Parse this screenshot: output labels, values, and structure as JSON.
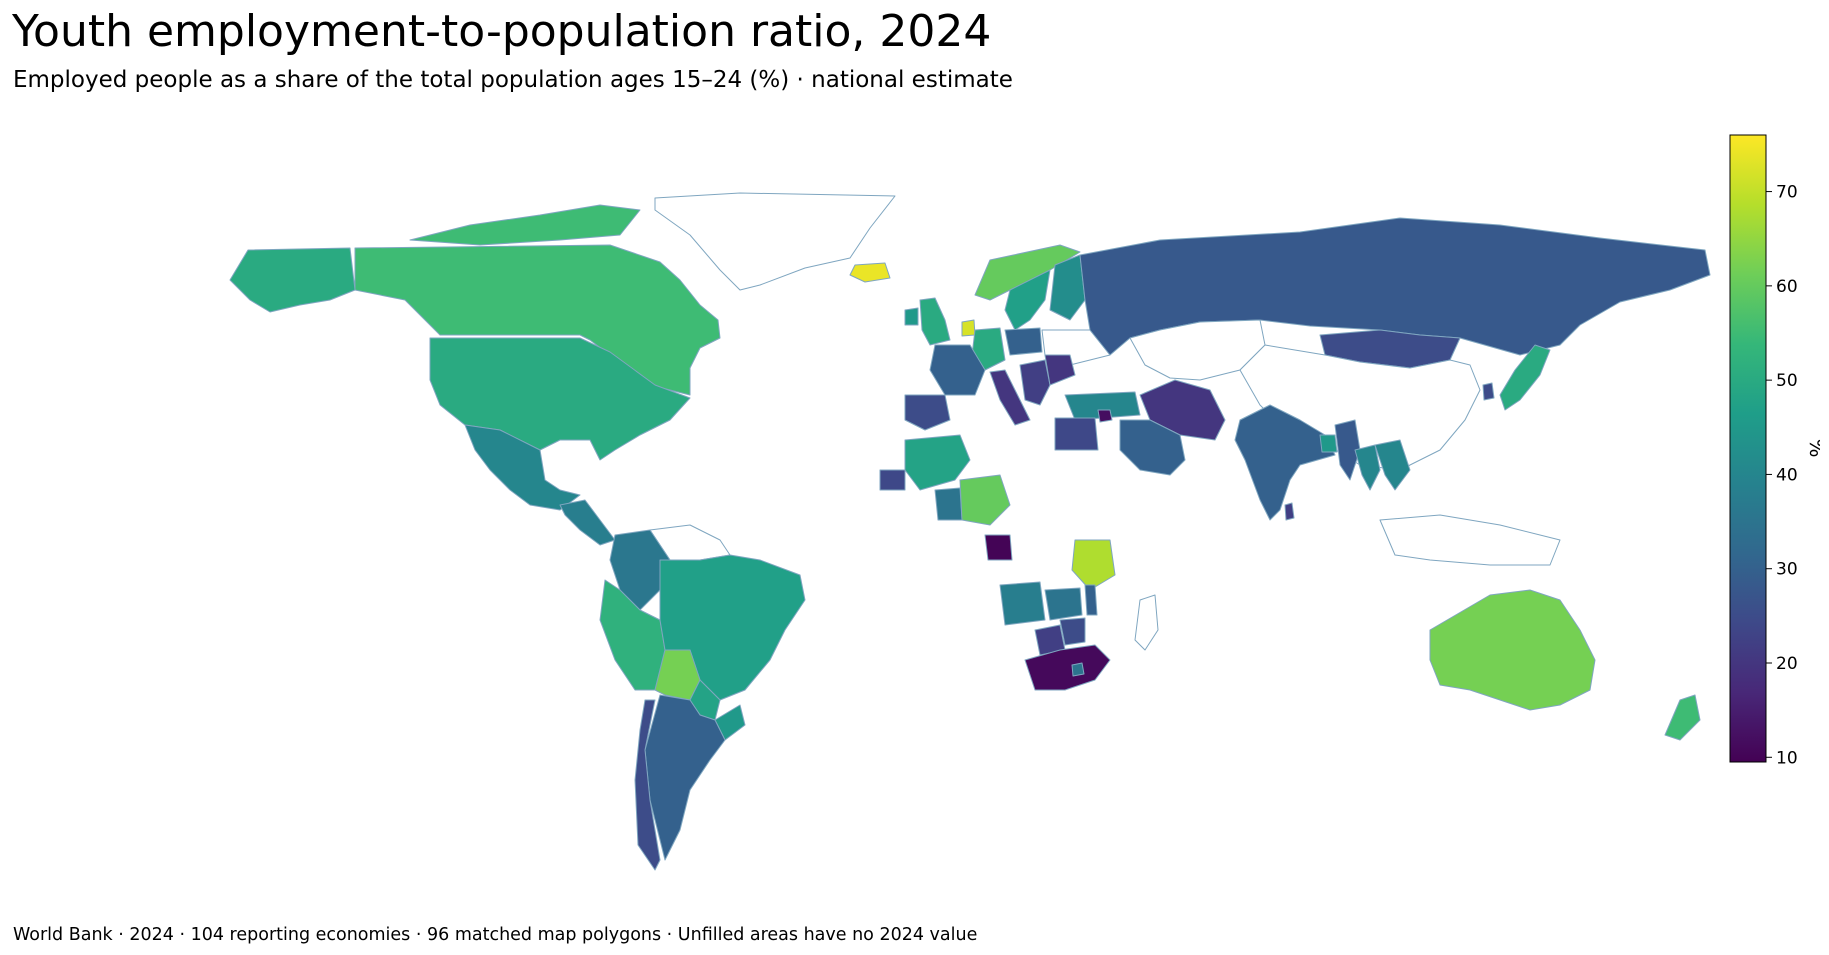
{
  "title": "Youth employment-to-population ratio, 2024",
  "subtitle": "Employed people as a share of the total population ages 15–24 (%) · national estimate",
  "footer": "World Bank · 2024 · 104 reporting economies · 96 matched map polygons · Unfilled areas have no 2024 value",
  "colorbar": {
    "label": "%",
    "min": 9.5,
    "max": 76,
    "ticks": [
      "10",
      "20",
      "30",
      "40",
      "50",
      "60",
      "70"
    ],
    "tick_values": [
      10,
      20,
      30,
      40,
      50,
      60,
      70
    ],
    "colormap": "viridis",
    "stops": [
      "#440154",
      "#482878",
      "#3e4989",
      "#31688e",
      "#26828e",
      "#1f9e89",
      "#35b779",
      "#6ece58",
      "#b5de2b",
      "#fde725"
    ]
  },
  "border_color": "#7fa6c0",
  "no_data_fill": "#ffffff",
  "map_data": {
    "type": "choropleth",
    "regions": [
      {
        "name": "Canada",
        "value": 55
      },
      {
        "name": "Greenland",
        "value": null
      },
      {
        "name": "United States",
        "value": 50
      },
      {
        "name": "Mexico",
        "value": 40
      },
      {
        "name": "Central America",
        "value": 38
      },
      {
        "name": "Colombia",
        "value": 36
      },
      {
        "name": "Venezuela",
        "value": null
      },
      {
        "name": "Peru",
        "value": 52
      },
      {
        "name": "Brazil",
        "value": 47
      },
      {
        "name": "Bolivia",
        "value": 62
      },
      {
        "name": "Paraguay",
        "value": 48
      },
      {
        "name": "Argentina",
        "value": 30
      },
      {
        "name": "Chile",
        "value": 25
      },
      {
        "name": "Uruguay",
        "value": 45
      },
      {
        "name": "Iceland",
        "value": 74
      },
      {
        "name": "United Kingdom",
        "value": 50
      },
      {
        "name": "Ireland",
        "value": 45
      },
      {
        "name": "France",
        "value": 30
      },
      {
        "name": "Spain",
        "value": 25
      },
      {
        "name": "Netherlands",
        "value": 72
      },
      {
        "name": "Germany",
        "value": 50
      },
      {
        "name": "Italy",
        "value": 20
      },
      {
        "name": "Poland",
        "value": 30
      },
      {
        "name": "Norway",
        "value": 60
      },
      {
        "name": "Sweden",
        "value": 47
      },
      {
        "name": "Finland",
        "value": 42
      },
      {
        "name": "Romania",
        "value": 20
      },
      {
        "name": "Balkans",
        "value": 22
      },
      {
        "name": "Ukraine",
        "value": null
      },
      {
        "name": "Turkey",
        "value": 40
      },
      {
        "name": "Russia",
        "value": 28
      },
      {
        "name": "Kazakhstan",
        "value": null
      },
      {
        "name": "Mongolia",
        "value": 25
      },
      {
        "name": "China",
        "value": null
      },
      {
        "name": "Japan",
        "value": 50
      },
      {
        "name": "South Korea",
        "value": 25
      },
      {
        "name": "Iran",
        "value": 20
      },
      {
        "name": "Saudi Arabia",
        "value": 30
      },
      {
        "name": "Egypt",
        "value": 24
      },
      {
        "name": "Jordan",
        "value": 12
      },
      {
        "name": "India",
        "value": 30
      },
      {
        "name": "Bangladesh",
        "value": 45
      },
      {
        "name": "Myanmar",
        "value": 28
      },
      {
        "name": "Thailand",
        "value": 40
      },
      {
        "name": "Vietnam",
        "value": 40
      },
      {
        "name": "Sri Lanka",
        "value": 22
      },
      {
        "name": "Mali",
        "value": 48
      },
      {
        "name": "Senegal",
        "value": 24
      },
      {
        "name": "Ghana",
        "value": 35
      },
      {
        "name": "Nigeria",
        "value": 60
      },
      {
        "name": "Gabon",
        "value": 10
      },
      {
        "name": "Tanzania",
        "value": 68
      },
      {
        "name": "Angola",
        "value": 38
      },
      {
        "name": "Zambia",
        "value": 35
      },
      {
        "name": "Malawi",
        "value": 30
      },
      {
        "name": "Botswana",
        "value": 22
      },
      {
        "name": "Zimbabwe",
        "value": 25
      },
      {
        "name": "South Africa",
        "value": 11
      },
      {
        "name": "Lesotho",
        "value": 35
      },
      {
        "name": "Madagascar",
        "value": null
      },
      {
        "name": "Indonesia",
        "value": null
      },
      {
        "name": "Australia",
        "value": 62
      },
      {
        "name": "New Zealand",
        "value": 55
      }
    ]
  }
}
